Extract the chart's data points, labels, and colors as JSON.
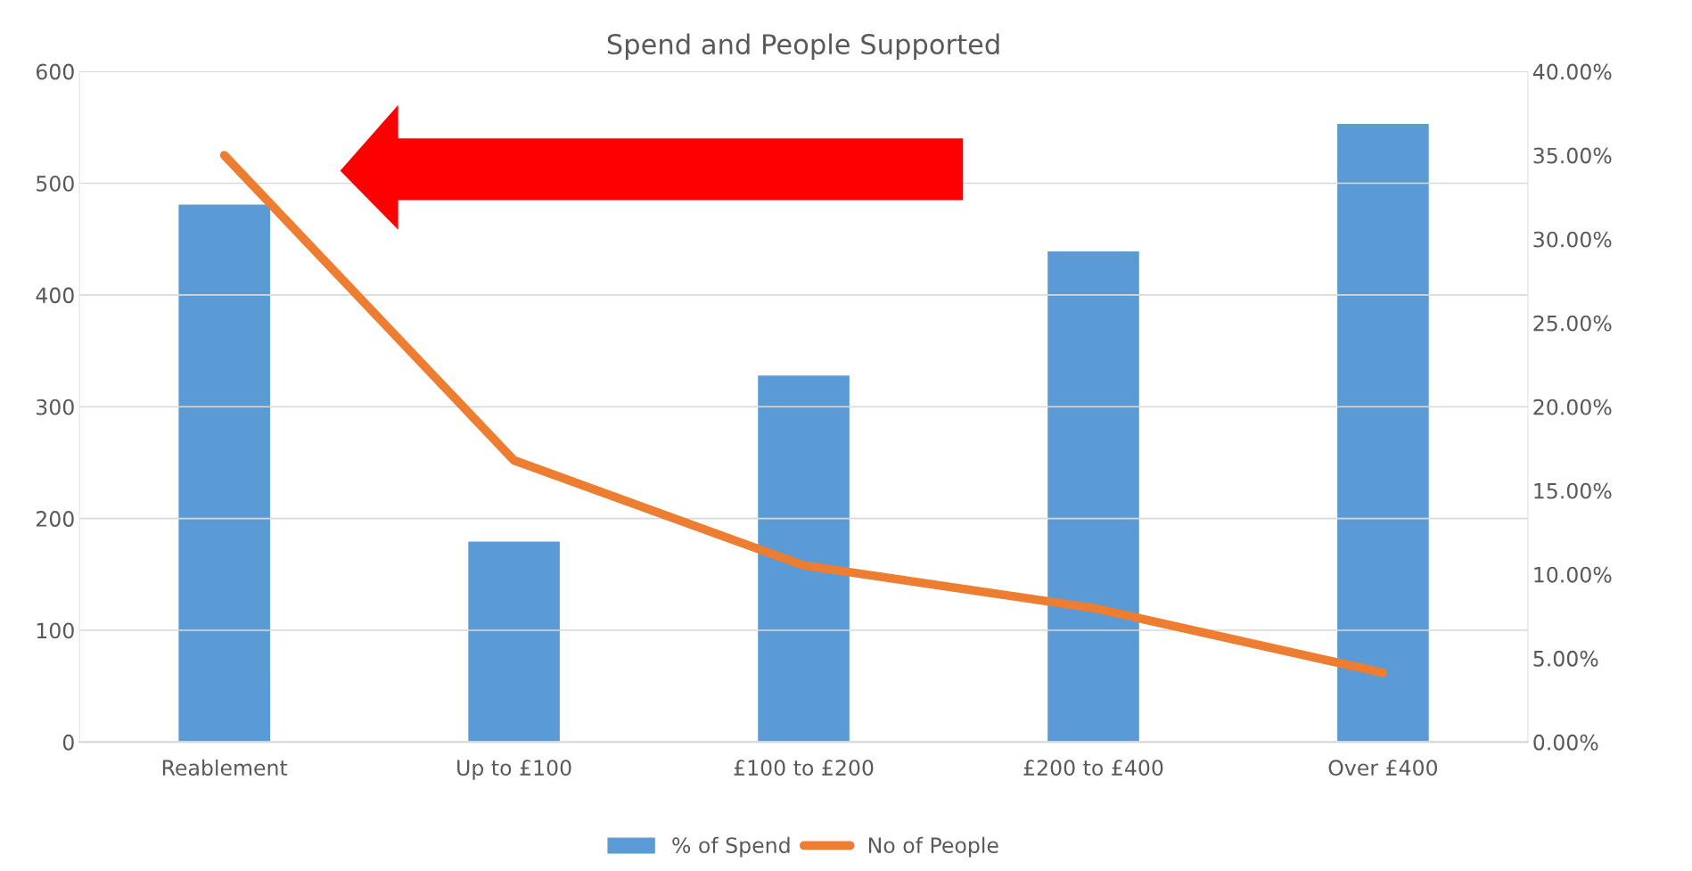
{
  "chart_data": {
    "type": "bar",
    "title": "Spend and People Supported",
    "categories": [
      "Reablement",
      "Up to £100",
      "£100 to £200",
      "£200 to £400",
      "Over £400"
    ],
    "series": [
      {
        "name": "% of Spend",
        "axis": "y2",
        "color": "#5b9bd5",
        "values": [
          32.1,
          12.0,
          21.9,
          29.3,
          36.9
        ]
      },
      {
        "name": "No of People",
        "type": "line",
        "axis": "y",
        "color": "#ed7d31",
        "values": [
          525,
          252,
          158,
          120,
          62
        ]
      }
    ],
    "ylim": [
      0,
      600
    ],
    "yticks": [
      0,
      100,
      200,
      300,
      400,
      500,
      600
    ],
    "y2lim": [
      0,
      40
    ],
    "y2ticks": [
      {
        "value": 0,
        "label": "0.00%"
      },
      {
        "value": 5,
        "label": "5.00%"
      },
      {
        "value": 10,
        "label": "10.00%"
      },
      {
        "value": 15,
        "label": "15.00%"
      },
      {
        "value": 20,
        "label": "20.00%"
      },
      {
        "value": 25,
        "label": "25.00%"
      },
      {
        "value": 30,
        "label": "30.00%"
      },
      {
        "value": 35,
        "label": "35.00%"
      },
      {
        "value": 40,
        "label": "40.00%"
      }
    ],
    "grid": "y",
    "legend": "bottom",
    "marker": "none",
    "line_style": "solid"
  }
}
